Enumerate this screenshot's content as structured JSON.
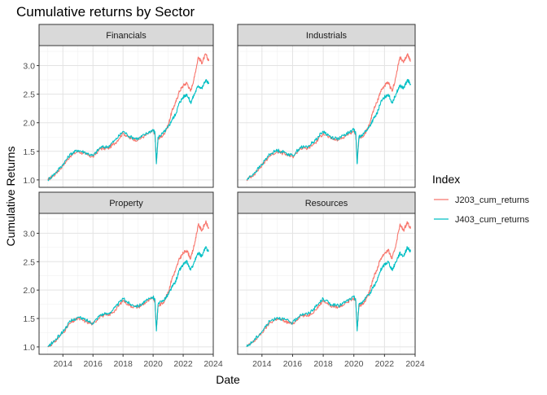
{
  "chart_data": {
    "type": "line",
    "title": "Cumulative returns by Sector",
    "xlabel": "Date",
    "ylabel": "Cumulative Returns",
    "legend_title": "Index",
    "legend_position": "right",
    "grid": true,
    "facet_layout": "2x2",
    "xlim": [
      "2012-06-01",
      "2024-01-01"
    ],
    "ylim": [
      0.87,
      3.35
    ],
    "x_ticks": [
      "2014",
      "2016",
      "2018",
      "2020",
      "2022",
      "2024"
    ],
    "y_ticks": [
      "1.0",
      "1.5",
      "2.0",
      "2.5",
      "3.0"
    ],
    "x": [
      "2013-01-01",
      "2013-07-01",
      "2014-01-01",
      "2014-07-01",
      "2015-01-01",
      "2015-07-01",
      "2016-01-01",
      "2016-07-01",
      "2017-01-01",
      "2017-07-01",
      "2018-01-01",
      "2018-07-01",
      "2019-01-01",
      "2019-07-01",
      "2020-01-01",
      "2020-02-15",
      "2020-03-20",
      "2020-05-01",
      "2020-09-01",
      "2021-01-01",
      "2021-04-01",
      "2021-07-01",
      "2021-10-01",
      "2022-01-01",
      "2022-04-01",
      "2022-07-01",
      "2022-10-01",
      "2023-01-01",
      "2023-04-01",
      "2023-07-01",
      "2023-09-15"
    ],
    "series": [
      {
        "name": "J203_cum_returns",
        "color": "#F8766D",
        "values": [
          1.0,
          1.1,
          1.25,
          1.42,
          1.5,
          1.45,
          1.4,
          1.55,
          1.55,
          1.65,
          1.82,
          1.72,
          1.7,
          1.78,
          1.86,
          1.8,
          1.3,
          1.72,
          1.78,
          1.95,
          2.2,
          2.35,
          2.55,
          2.65,
          2.7,
          2.55,
          2.8,
          3.15,
          3.05,
          3.2,
          3.08
        ]
      },
      {
        "name": "J403_cum_returns",
        "color": "#00BFC4",
        "values": [
          1.0,
          1.12,
          1.27,
          1.45,
          1.52,
          1.48,
          1.42,
          1.57,
          1.58,
          1.7,
          1.85,
          1.75,
          1.72,
          1.8,
          1.88,
          1.82,
          1.28,
          1.75,
          1.82,
          1.92,
          2.05,
          2.15,
          2.35,
          2.45,
          2.5,
          2.35,
          2.5,
          2.65,
          2.6,
          2.75,
          2.68
        ]
      }
    ],
    "panels": [
      {
        "label": "Financials"
      },
      {
        "label": "Industrials"
      },
      {
        "label": "Property"
      },
      {
        "label": "Resources"
      }
    ]
  }
}
